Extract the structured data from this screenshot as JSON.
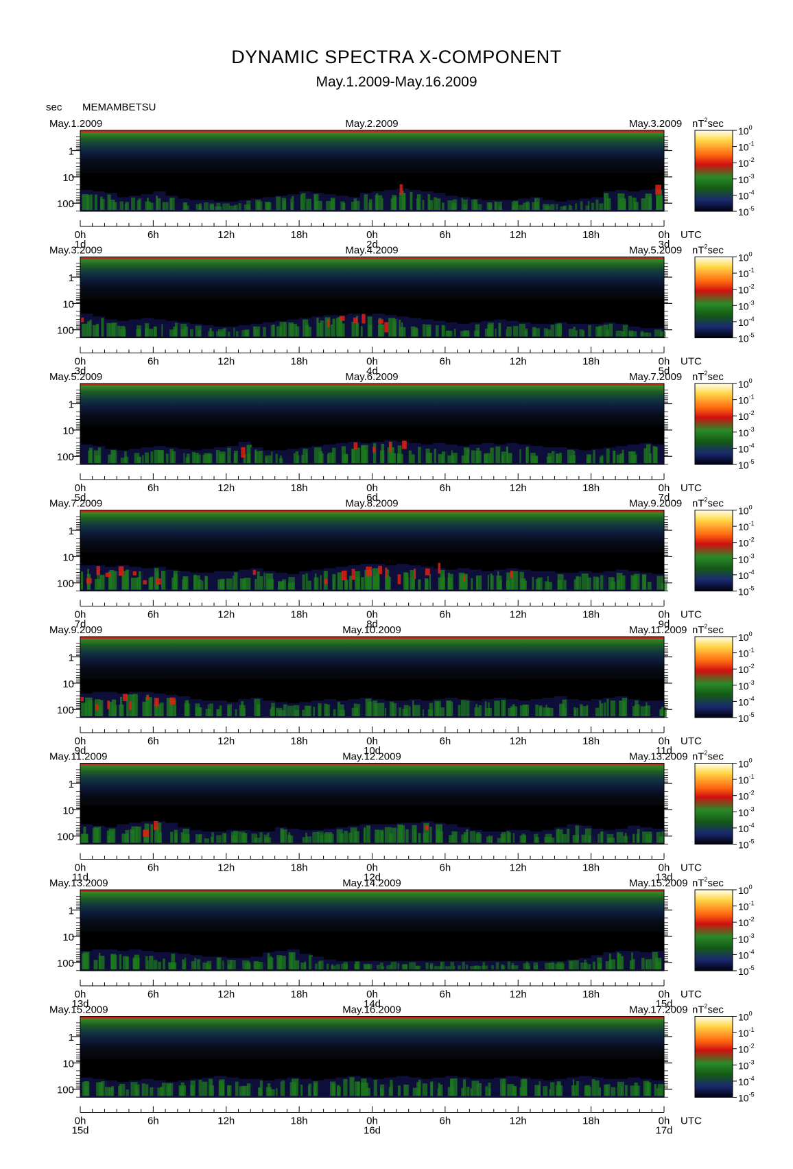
{
  "title": "DYNAMIC SPECTRA X-COMPONENT",
  "subtitle": "May.1.2009-May.16.2009",
  "y_unit_label": "sec",
  "station": "MEMAMBETSU",
  "colorbar_unit": "nT",
  "colorbar_unit_sup": "2",
  "colorbar_unit_suffix": "sec",
  "utc_label": "UTC",
  "colors": {
    "background": "#000000",
    "low": "#101040",
    "mid": "#1e7a1e",
    "high": "#e02010",
    "top": "#ffff80"
  },
  "chart_data": {
    "type": "heatmap",
    "y_axis": {
      "scale": "log",
      "ticks": [
        "1",
        "10",
        "100"
      ],
      "unit": "sec",
      "reversed": true
    },
    "x_ticks": [
      "0h",
      "6h",
      "12h",
      "18h",
      "0h",
      "6h",
      "12h",
      "18h",
      "0h"
    ],
    "colorbar": {
      "ticks": [
        "10",
        "10",
        "10",
        "10",
        "10",
        "10"
      ],
      "exponents": [
        "0",
        "-1",
        "-2",
        "-3",
        "-4",
        "-5"
      ],
      "range": [
        1e-05,
        1
      ]
    },
    "panels": [
      {
        "date_left": "May.1.2009",
        "date_mid": "May.2.2009",
        "date_right": "May.3.2009",
        "day_labels": [
          "1d",
          "2d",
          "3d"
        ],
        "activity": [
          0.55,
          0.5,
          0.45,
          0.3,
          0.35,
          0.4,
          0.5,
          0.35,
          0.25,
          0.2,
          0.2,
          0.15,
          0.15,
          0.2,
          0.25,
          0.3,
          0.35,
          0.4,
          0.5,
          0.45,
          0.4,
          0.35,
          0.3,
          0.45,
          0.5,
          0.55,
          0.6,
          0.55,
          0.5,
          0.45,
          0.35,
          0.3,
          0.25,
          0.2,
          0.2,
          0.2,
          0.25,
          0.3,
          0.2,
          0.15,
          0.2,
          0.25,
          0.3,
          0.5,
          0.55,
          0.5,
          0.55,
          0.6
        ]
      },
      {
        "date_left": "May.3.2009",
        "date_mid": "May.4.2009",
        "date_right": "May.5.2009",
        "day_labels": [
          "3d",
          "4d",
          "5d"
        ],
        "activity": [
          0.65,
          0.55,
          0.45,
          0.4,
          0.45,
          0.5,
          0.45,
          0.4,
          0.35,
          0.3,
          0.25,
          0.2,
          0.2,
          0.25,
          0.3,
          0.35,
          0.4,
          0.45,
          0.5,
          0.55,
          0.6,
          0.6,
          0.65,
          0.6,
          0.65,
          0.6,
          0.55,
          0.5,
          0.45,
          0.4,
          0.35,
          0.3,
          0.35,
          0.4,
          0.45,
          0.4,
          0.35,
          0.3,
          0.3,
          0.35,
          0.3,
          0.3,
          0.3,
          0.35,
          0.3,
          0.2,
          0.15,
          0.15
        ]
      },
      {
        "date_left": "May.5.2009",
        "date_mid": "May.6.2009",
        "date_right": "May.7.2009",
        "day_labels": [
          "5d",
          "6d",
          "7d"
        ],
        "activity": [
          0.5,
          0.45,
          0.35,
          0.3,
          0.35,
          0.4,
          0.45,
          0.4,
          0.35,
          0.3,
          0.35,
          0.4,
          0.45,
          0.6,
          0.4,
          0.3,
          0.3,
          0.35,
          0.4,
          0.45,
          0.5,
          0.55,
          0.6,
          0.55,
          0.6,
          0.65,
          0.6,
          0.55,
          0.5,
          0.55,
          0.5,
          0.45,
          0.5,
          0.55,
          0.5,
          0.55,
          0.5,
          0.45,
          0.4,
          0.4,
          0.35,
          0.3,
          0.35,
          0.4,
          0.45,
          0.5,
          0.55,
          0.5
        ]
      },
      {
        "date_left": "May.7.2009",
        "date_mid": "May.8.2009",
        "date_right": "May.9.2009",
        "day_labels": [
          "7d",
          "8d",
          "9d"
        ],
        "activity": [
          0.7,
          0.7,
          0.65,
          0.7,
          0.65,
          0.6,
          0.65,
          0.55,
          0.5,
          0.45,
          0.45,
          0.5,
          0.5,
          0.55,
          0.6,
          0.5,
          0.45,
          0.4,
          0.5,
          0.55,
          0.6,
          0.65,
          0.7,
          0.75,
          0.75,
          0.7,
          0.75,
          0.7,
          0.65,
          0.6,
          0.55,
          0.6,
          0.55,
          0.5,
          0.55,
          0.6,
          0.55,
          0.5,
          0.5,
          0.45,
          0.45,
          0.5,
          0.45,
          0.5,
          0.55,
          0.5,
          0.45,
          0.4
        ]
      },
      {
        "date_left": "May.9.2009",
        "date_mid": "May.10.2009",
        "date_right": "May.11.2009",
        "day_labels": [
          "9d",
          "10d",
          "11d"
        ],
        "activity": [
          0.65,
          0.7,
          0.7,
          0.65,
          0.7,
          0.7,
          0.65,
          0.6,
          0.55,
          0.45,
          0.4,
          0.4,
          0.35,
          0.45,
          0.5,
          0.4,
          0.35,
          0.3,
          0.35,
          0.4,
          0.45,
          0.4,
          0.45,
          0.5,
          0.45,
          0.4,
          0.4,
          0.45,
          0.4,
          0.45,
          0.5,
          0.45,
          0.4,
          0.45,
          0.5,
          0.45,
          0.4,
          0.45,
          0.5,
          0.55,
          0.45,
          0.4,
          0.45,
          0.5,
          0.55,
          0.45,
          0.4,
          0.4
        ]
      },
      {
        "date_left": "May.11.2009",
        "date_mid": "May.12.2009",
        "date_right": "May.13.2009",
        "day_labels": [
          "11d",
          "12d",
          "13d"
        ],
        "activity": [
          0.5,
          0.45,
          0.4,
          0.5,
          0.55,
          0.6,
          0.6,
          0.55,
          0.4,
          0.3,
          0.25,
          0.25,
          0.3,
          0.3,
          0.25,
          0.25,
          0.4,
          0.35,
          0.3,
          0.3,
          0.35,
          0.4,
          0.45,
          0.5,
          0.5,
          0.5,
          0.55,
          0.55,
          0.6,
          0.55,
          0.5,
          0.4,
          0.3,
          0.25,
          0.25,
          0.3,
          0.3,
          0.25,
          0.3,
          0.4,
          0.5,
          0.45,
          0.35,
          0.3,
          0.35,
          0.45,
          0.4,
          0.35
        ]
      },
      {
        "date_left": "May.13.2009",
        "date_mid": "May.14.2009",
        "date_right": "May.15.2009",
        "day_labels": [
          "13d",
          "14d",
          "15d"
        ],
        "activity": [
          0.5,
          0.55,
          0.55,
          0.5,
          0.55,
          0.5,
          0.45,
          0.45,
          0.4,
          0.35,
          0.3,
          0.3,
          0.25,
          0.25,
          0.3,
          0.45,
          0.5,
          0.55,
          0.4,
          0.3,
          0.2,
          0.15,
          0.15,
          0.15,
          0.15,
          0.15,
          0.15,
          0.15,
          0.15,
          0.15,
          0.15,
          0.15,
          0.15,
          0.15,
          0.15,
          0.15,
          0.15,
          0.15,
          0.15,
          0.15,
          0.2,
          0.25,
          0.35,
          0.45,
          0.5,
          0.5,
          0.45,
          0.5
        ]
      },
      {
        "date_left": "May.15.2009",
        "date_mid": "May.16.2009",
        "date_right": "May.17.2009",
        "day_labels": [
          "15d",
          "16d",
          "17d"
        ],
        "activity": [
          0.5,
          0.45,
          0.4,
          0.35,
          0.4,
          0.45,
          0.4,
          0.35,
          0.4,
          0.45,
          0.5,
          0.55,
          0.5,
          0.45,
          0.45,
          0.4,
          0.45,
          0.5,
          0.45,
          0.4,
          0.45,
          0.5,
          0.55,
          0.5,
          0.45,
          0.5,
          0.55,
          0.5,
          0.45,
          0.5,
          0.55,
          0.5,
          0.45,
          0.45,
          0.5,
          0.55,
          0.5,
          0.45,
          0.4,
          0.45,
          0.5,
          0.55,
          0.5,
          0.45,
          0.45,
          0.5,
          0.45,
          0.4
        ]
      }
    ]
  }
}
